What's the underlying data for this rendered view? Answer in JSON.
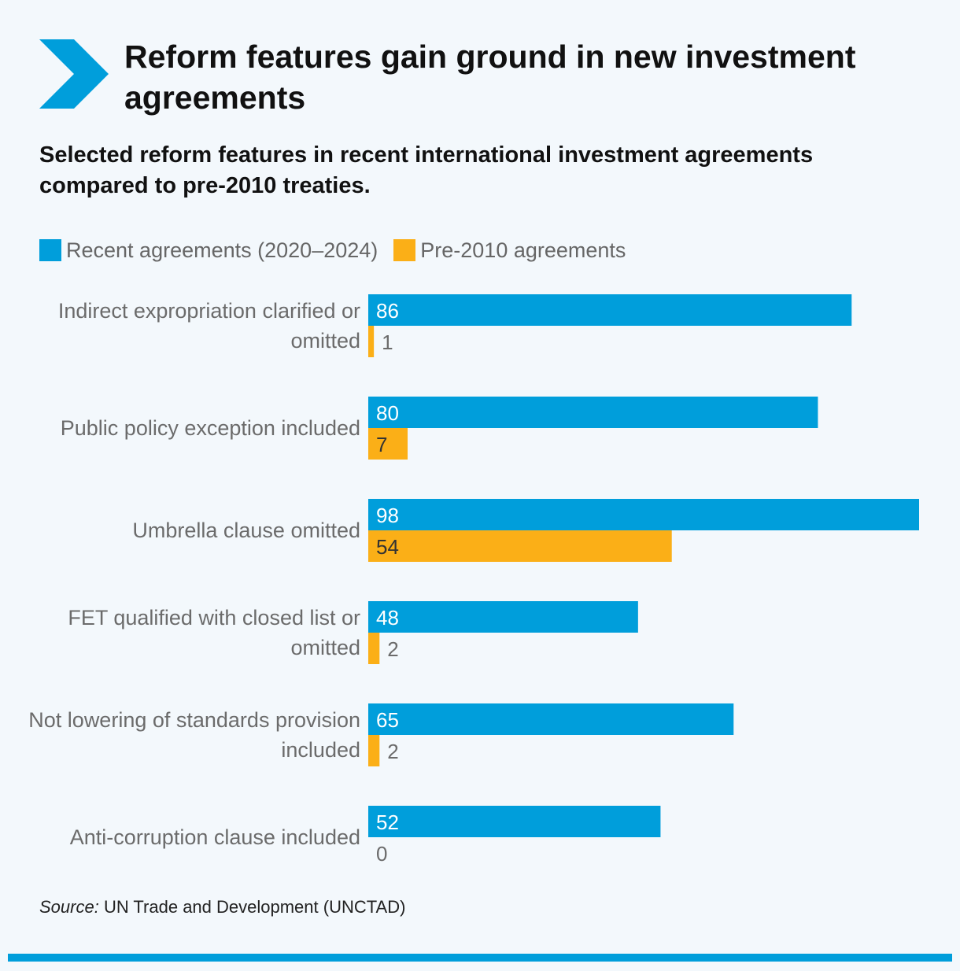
{
  "header": {
    "title": "Reform features gain ground in new investment agreements",
    "subtitle": "Selected reform features in recent international investment agreements compared to pre-2010 treaties."
  },
  "colors": {
    "accent": "#009edb",
    "recent": "#009edb",
    "pre2010": "#fbaf17"
  },
  "icons": {
    "header": "chevron-right-icon"
  },
  "chart_data": {
    "type": "bar",
    "orientation": "horizontal",
    "title": "Reform features gain ground in new investment agreements",
    "subtitle": "Selected reform features in recent international investment agreements compared to pre-2010 treaties.",
    "legend_position": "top-left",
    "grid": false,
    "xlim": [
      0,
      98
    ],
    "categories": [
      [
        "Indirect expropriation clarified or",
        "omitted"
      ],
      [
        "Public policy exception included"
      ],
      [
        "Umbrella clause omitted"
      ],
      [
        "FET qualified with closed list or",
        "omitted"
      ],
      [
        "Not lowering of standards provision",
        "included"
      ],
      [
        "Anti-corruption clause included"
      ]
    ],
    "series": [
      {
        "name": "Recent agreements (2020–2024)",
        "color": "#009edb",
        "values": [
          86,
          80,
          98,
          48,
          65,
          52
        ]
      },
      {
        "name": "Pre-2010 agreements",
        "color": "#fbaf17",
        "values": [
          1,
          7,
          54,
          2,
          2,
          0
        ]
      }
    ]
  },
  "footer": {
    "source_label": "Source:",
    "source_text": " UN Trade and Development (UNCTAD)"
  }
}
